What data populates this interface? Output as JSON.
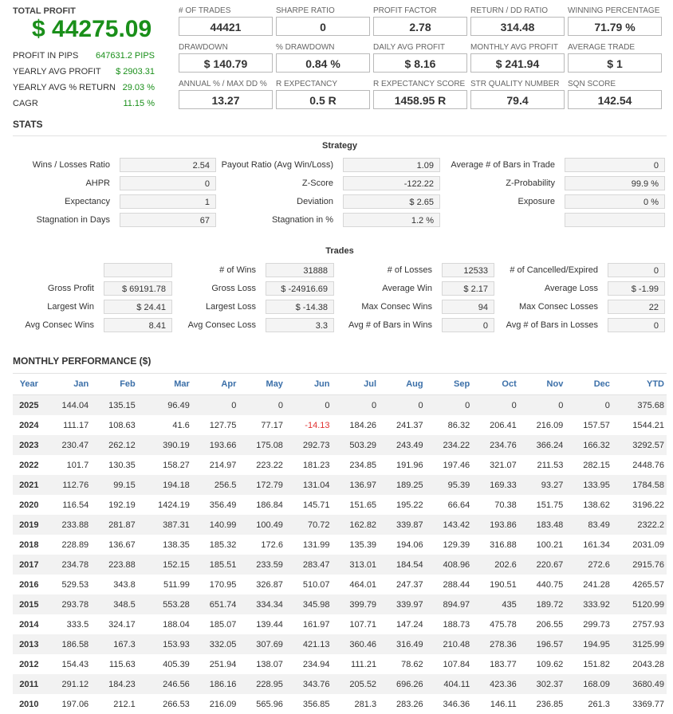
{
  "summary": {
    "total_profit_label": "TOTAL PROFIT",
    "total_profit_value": "$ 44275.09",
    "rows": [
      {
        "label": "PROFIT IN PIPS",
        "value": "647631.2 PIPS"
      },
      {
        "label": "YEARLY AVG PROFIT",
        "value": "$ 2903.31"
      },
      {
        "label": "YEARLY AVG % RETURN",
        "value": "29.03 %"
      },
      {
        "label": "CAGR",
        "value": "11.15 %"
      }
    ]
  },
  "metrics": [
    {
      "label": "# OF TRADES",
      "value": "44421"
    },
    {
      "label": "SHARPE RATIO",
      "value": "0"
    },
    {
      "label": "PROFIT FACTOR",
      "value": "2.78"
    },
    {
      "label": "RETURN / DD RATIO",
      "value": "314.48"
    },
    {
      "label": "WINNING PERCENTAGE",
      "value": "71.79 %"
    },
    {
      "label": "DRAWDOWN",
      "value": "$ 140.79"
    },
    {
      "label": "% DRAWDOWN",
      "value": "0.84 %"
    },
    {
      "label": "DAILY AVG PROFIT",
      "value": "$ 8.16"
    },
    {
      "label": "MONTHLY AVG PROFIT",
      "value": "$ 241.94"
    },
    {
      "label": "AVERAGE TRADE",
      "value": "$ 1"
    },
    {
      "label": "ANNUAL % / MAX DD %",
      "value": "13.27"
    },
    {
      "label": "R EXPECTANCY",
      "value": "0.5 R"
    },
    {
      "label": "R EXPECTANCY SCORE",
      "value": "1458.95 R"
    },
    {
      "label": "STR QUALITY NUMBER",
      "value": "79.4"
    },
    {
      "label": "SQN SCORE",
      "value": "142.54"
    }
  ],
  "stats": {
    "heading": "STATS",
    "strategy_heading": "Strategy",
    "strategy": [
      [
        {
          "label": "Wins / Losses Ratio",
          "value": "2.54"
        },
        {
          "label": "Payout Ratio (Avg Win/Loss)",
          "value": "1.09"
        },
        {
          "label": "Average # of Bars in Trade",
          "value": "0"
        }
      ],
      [
        {
          "label": "AHPR",
          "value": "0"
        },
        {
          "label": "Z-Score",
          "value": "-122.22"
        },
        {
          "label": "Z-Probability",
          "value": "99.9 %"
        }
      ],
      [
        {
          "label": "Expectancy",
          "value": "1"
        },
        {
          "label": "Deviation",
          "value": "$ 2.65"
        },
        {
          "label": "Exposure",
          "value": "0 %"
        }
      ],
      [
        {
          "label": "Stagnation in Days",
          "value": "67"
        },
        {
          "label": "Stagnation in %",
          "value": "1.2 %"
        },
        {
          "label": "",
          "value": ""
        }
      ]
    ],
    "trades_heading": "Trades",
    "trades": [
      [
        {
          "label": "",
          "value": ""
        },
        {
          "label": "# of Wins",
          "value": "31888"
        },
        {
          "label": "# of Losses",
          "value": "12533"
        },
        {
          "label": "# of Cancelled/Expired",
          "value": "0"
        }
      ],
      [
        {
          "label": "Gross Profit",
          "value": "$ 69191.78"
        },
        {
          "label": "Gross Loss",
          "value": "$ -24916.69"
        },
        {
          "label": "Average Win",
          "value": "$ 2.17"
        },
        {
          "label": "Average Loss",
          "value": "$ -1.99"
        }
      ],
      [
        {
          "label": "Largest Win",
          "value": "$ 24.41"
        },
        {
          "label": "Largest Loss",
          "value": "$ -14.38"
        },
        {
          "label": "Max Consec Wins",
          "value": "94"
        },
        {
          "label": "Max Consec Losses",
          "value": "22"
        }
      ],
      [
        {
          "label": "Avg Consec Wins",
          "value": "8.41"
        },
        {
          "label": "Avg Consec Loss",
          "value": "3.3"
        },
        {
          "label": "Avg # of Bars in Wins",
          "value": "0"
        },
        {
          "label": "Avg # of Bars in Losses",
          "value": "0"
        }
      ]
    ]
  },
  "monthly": {
    "heading": "MONTHLY PERFORMANCE ($)",
    "headers": [
      "Year",
      "Jan",
      "Feb",
      "Mar",
      "Apr",
      "May",
      "Jun",
      "Jul",
      "Aug",
      "Sep",
      "Oct",
      "Nov",
      "Dec",
      "YTD"
    ],
    "rows": [
      [
        "2025",
        "144.04",
        "135.15",
        "96.49",
        "0",
        "0",
        "0",
        "0",
        "0",
        "0",
        "0",
        "0",
        "0",
        "375.68"
      ],
      [
        "2024",
        "111.17",
        "108.63",
        "41.6",
        "127.75",
        "77.17",
        "-14.13",
        "184.26",
        "241.37",
        "86.32",
        "206.41",
        "216.09",
        "157.57",
        "1544.21"
      ],
      [
        "2023",
        "230.47",
        "262.12",
        "390.19",
        "193.66",
        "175.08",
        "292.73",
        "503.29",
        "243.49",
        "234.22",
        "234.76",
        "366.24",
        "166.32",
        "3292.57"
      ],
      [
        "2022",
        "101.7",
        "130.35",
        "158.27",
        "214.97",
        "223.22",
        "181.23",
        "234.85",
        "191.96",
        "197.46",
        "321.07",
        "211.53",
        "282.15",
        "2448.76"
      ],
      [
        "2021",
        "112.76",
        "99.15",
        "194.18",
        "256.5",
        "172.79",
        "131.04",
        "136.97",
        "189.25",
        "95.39",
        "169.33",
        "93.27",
        "133.95",
        "1784.58"
      ],
      [
        "2020",
        "116.54",
        "192.19",
        "1424.19",
        "356.49",
        "186.84",
        "145.71",
        "151.65",
        "195.22",
        "66.64",
        "70.38",
        "151.75",
        "138.62",
        "3196.22"
      ],
      [
        "2019",
        "233.88",
        "281.87",
        "387.31",
        "140.99",
        "100.49",
        "70.72",
        "162.82",
        "339.87",
        "143.42",
        "193.86",
        "183.48",
        "83.49",
        "2322.2"
      ],
      [
        "2018",
        "228.89",
        "136.67",
        "138.35",
        "185.32",
        "172.6",
        "131.99",
        "135.39",
        "194.06",
        "129.39",
        "316.88",
        "100.21",
        "161.34",
        "2031.09"
      ],
      [
        "2017",
        "234.78",
        "223.88",
        "152.15",
        "185.51",
        "233.59",
        "283.47",
        "313.01",
        "184.54",
        "408.96",
        "202.6",
        "220.67",
        "272.6",
        "2915.76"
      ],
      [
        "2016",
        "529.53",
        "343.8",
        "511.99",
        "170.95",
        "326.87",
        "510.07",
        "464.01",
        "247.37",
        "288.44",
        "190.51",
        "440.75",
        "241.28",
        "4265.57"
      ],
      [
        "2015",
        "293.78",
        "348.5",
        "553.28",
        "651.74",
        "334.34",
        "345.98",
        "399.79",
        "339.97",
        "894.97",
        "435",
        "189.72",
        "333.92",
        "5120.99"
      ],
      [
        "2014",
        "333.5",
        "324.17",
        "188.04",
        "185.07",
        "139.44",
        "161.97",
        "107.71",
        "147.24",
        "188.73",
        "475.78",
        "206.55",
        "299.73",
        "2757.93"
      ],
      [
        "2013",
        "186.58",
        "167.3",
        "153.93",
        "332.05",
        "307.69",
        "421.13",
        "360.46",
        "316.49",
        "210.48",
        "278.36",
        "196.57",
        "194.95",
        "3125.99"
      ],
      [
        "2012",
        "154.43",
        "115.63",
        "405.39",
        "251.94",
        "138.07",
        "234.94",
        "111.21",
        "78.62",
        "107.84",
        "183.77",
        "109.62",
        "151.82",
        "2043.28"
      ],
      [
        "2011",
        "291.12",
        "184.23",
        "246.56",
        "186.16",
        "228.95",
        "343.76",
        "205.52",
        "696.26",
        "404.11",
        "423.36",
        "302.37",
        "168.09",
        "3680.49"
      ],
      [
        "2010",
        "197.06",
        "212.1",
        "266.53",
        "216.09",
        "565.96",
        "356.85",
        "281.3",
        "283.26",
        "346.36",
        "146.11",
        "236.85",
        "261.3",
        "3369.77"
      ]
    ]
  }
}
